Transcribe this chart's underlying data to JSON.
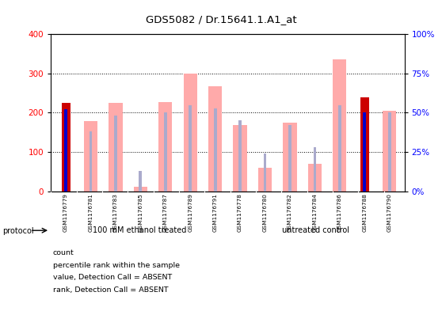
{
  "title": "GDS5082 / Dr.15641.1.A1_at",
  "samples": [
    "GSM1176779",
    "GSM1176781",
    "GSM1176783",
    "GSM1176785",
    "GSM1176787",
    "GSM1176789",
    "GSM1176791",
    "GSM1176778",
    "GSM1176780",
    "GSM1176782",
    "GSM1176784",
    "GSM1176786",
    "GSM1176788",
    "GSM1176790"
  ],
  "count_values": [
    225,
    0,
    0,
    0,
    0,
    0,
    0,
    0,
    0,
    0,
    0,
    0,
    240,
    0
  ],
  "rank_values": [
    52,
    0,
    0,
    0,
    0,
    0,
    0,
    0,
    0,
    0,
    0,
    0,
    50,
    0
  ],
  "value_absent": [
    0,
    178,
    226,
    12,
    228,
    300,
    268,
    168,
    60,
    174,
    70,
    336,
    0,
    204
  ],
  "rank_absent": [
    0,
    38,
    48,
    13,
    50,
    55,
    53,
    45,
    24,
    42,
    28,
    55,
    0,
    50
  ],
  "group1_count": 7,
  "group1_label": "100 mM ethanol treated",
  "group2_label": "untreated control",
  "left_ylim": [
    0,
    400
  ],
  "right_ylim": [
    0,
    100
  ],
  "left_yticks": [
    0,
    100,
    200,
    300,
    400
  ],
  "right_yticks": [
    0,
    25,
    50,
    75,
    100
  ],
  "right_yticklabels": [
    "0%",
    "25%",
    "50%",
    "75%",
    "100%"
  ],
  "color_count": "#cc0000",
  "color_rank": "#0000cc",
  "color_value_absent": "#ffaaaa",
  "color_rank_absent": "#aaaacc",
  "color_group": "#55ee55",
  "tick_label_area_color": "#cccccc",
  "protocol_label": "protocol",
  "legend_items": [
    {
      "label": "count",
      "color": "#cc0000"
    },
    {
      "label": "percentile rank within the sample",
      "color": "#0000cc"
    },
    {
      "label": "value, Detection Call = ABSENT",
      "color": "#ffaaaa"
    },
    {
      "label": "rank, Detection Call = ABSENT",
      "color": "#aaaacc"
    }
  ]
}
